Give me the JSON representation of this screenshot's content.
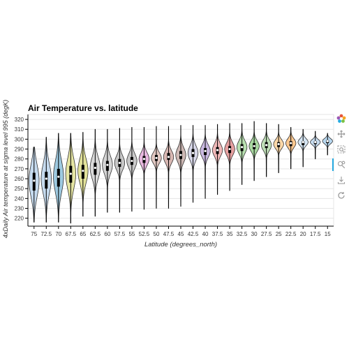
{
  "chart_data": {
    "type": "violin",
    "title": "Air Temperature vs. latitude",
    "xlabel": "Latitude (degrees_north)",
    "ylabel": "4xDaily Air temperature at sigma level 995 (degK)",
    "ylim": [
      212,
      325
    ],
    "yticks": [
      220,
      230,
      240,
      250,
      260,
      270,
      280,
      290,
      300,
      310,
      320
    ],
    "grid": true,
    "categories": [
      "75",
      "72.5",
      "70",
      "67.5",
      "65",
      "62.5",
      "60",
      "57.5",
      "55",
      "52.5",
      "50",
      "47.5",
      "45",
      "42.5",
      "40",
      "37.5",
      "35",
      "32.5",
      "30",
      "27.5",
      "25",
      "22.5",
      "20",
      "17.5",
      "15"
    ],
    "colors": [
      "#c6dbef",
      "#c6dbef",
      "#9ecae1",
      "#e5e5a3",
      "#e2e29a",
      "#d9d9d9",
      "#d4d4d4",
      "#c8c8c8",
      "#c9c9c9",
      "#e8b8e0",
      "#e2c8c2",
      "#d9b8b3",
      "#cdb8b4",
      "#d6d6e8",
      "#c9b8e0",
      "#f0b8b8",
      "#e6a0a0",
      "#b8e0b0",
      "#a8d8a0",
      "#c0e0b8",
      "#fdd8a8",
      "#fdc890",
      "#d6e6f4",
      "#c6dbef",
      "#b8d8f0"
    ],
    "series": [
      {
        "min": 216,
        "q1": 248,
        "median": 258,
        "q3": 266,
        "max": 292
      },
      {
        "min": 216,
        "q1": 250,
        "median": 260,
        "q3": 267,
        "max": 302
      },
      {
        "min": 216,
        "q1": 252,
        "median": 262,
        "q3": 270,
        "max": 306
      },
      {
        "min": 215,
        "q1": 256,
        "median": 265,
        "q3": 273,
        "max": 306
      },
      {
        "min": 222,
        "q1": 260,
        "median": 268,
        "q3": 274,
        "max": 307
      },
      {
        "min": 222,
        "q1": 264,
        "median": 271,
        "q3": 276,
        "max": 310
      },
      {
        "min": 226,
        "q1": 268,
        "median": 274,
        "q3": 278,
        "max": 310
      },
      {
        "min": 226,
        "q1": 272,
        "median": 276,
        "q3": 280,
        "max": 311
      },
      {
        "min": 227,
        "q1": 274,
        "median": 278,
        "q3": 282,
        "max": 312
      },
      {
        "min": 229,
        "q1": 276,
        "median": 280,
        "q3": 283,
        "max": 312
      },
      {
        "min": 230,
        "q1": 278,
        "median": 281,
        "q3": 284,
        "max": 313
      },
      {
        "min": 230,
        "q1": 279,
        "median": 282,
        "q3": 286,
        "max": 313
      },
      {
        "min": 232,
        "q1": 280,
        "median": 284,
        "q3": 288,
        "max": 314
      },
      {
        "min": 236,
        "q1": 282,
        "median": 286,
        "q3": 290,
        "max": 314
      },
      {
        "min": 240,
        "q1": 284,
        "median": 288,
        "q3": 291,
        "max": 314
      },
      {
        "min": 244,
        "q1": 285,
        "median": 289,
        "q3": 292,
        "max": 315
      },
      {
        "min": 248,
        "q1": 286,
        "median": 290,
        "q3": 293,
        "max": 316
      },
      {
        "min": 254,
        "q1": 288,
        "median": 292,
        "q3": 295,
        "max": 316
      },
      {
        "min": 258,
        "q1": 290,
        "median": 293,
        "q3": 296,
        "max": 318
      },
      {
        "min": 262,
        "q1": 291,
        "median": 294,
        "q3": 297,
        "max": 316
      },
      {
        "min": 266,
        "q1": 292,
        "median": 295,
        "q3": 297,
        "max": 315
      },
      {
        "min": 270,
        "q1": 293,
        "median": 296,
        "q3": 298,
        "max": 312
      },
      {
        "min": 272,
        "q1": 294,
        "median": 297,
        "q3": 298,
        "max": 310
      },
      {
        "min": 280,
        "q1": 295,
        "median": 297,
        "q3": 298,
        "max": 308
      },
      {
        "min": 284,
        "q1": 296,
        "median": 298,
        "q3": 299,
        "max": 306
      }
    ]
  },
  "toolbar": {
    "icons": [
      "bokeh-logo-icon",
      "pan-icon",
      "box-zoom-icon",
      "wheel-zoom-icon",
      "save-icon",
      "reset-icon"
    ]
  }
}
